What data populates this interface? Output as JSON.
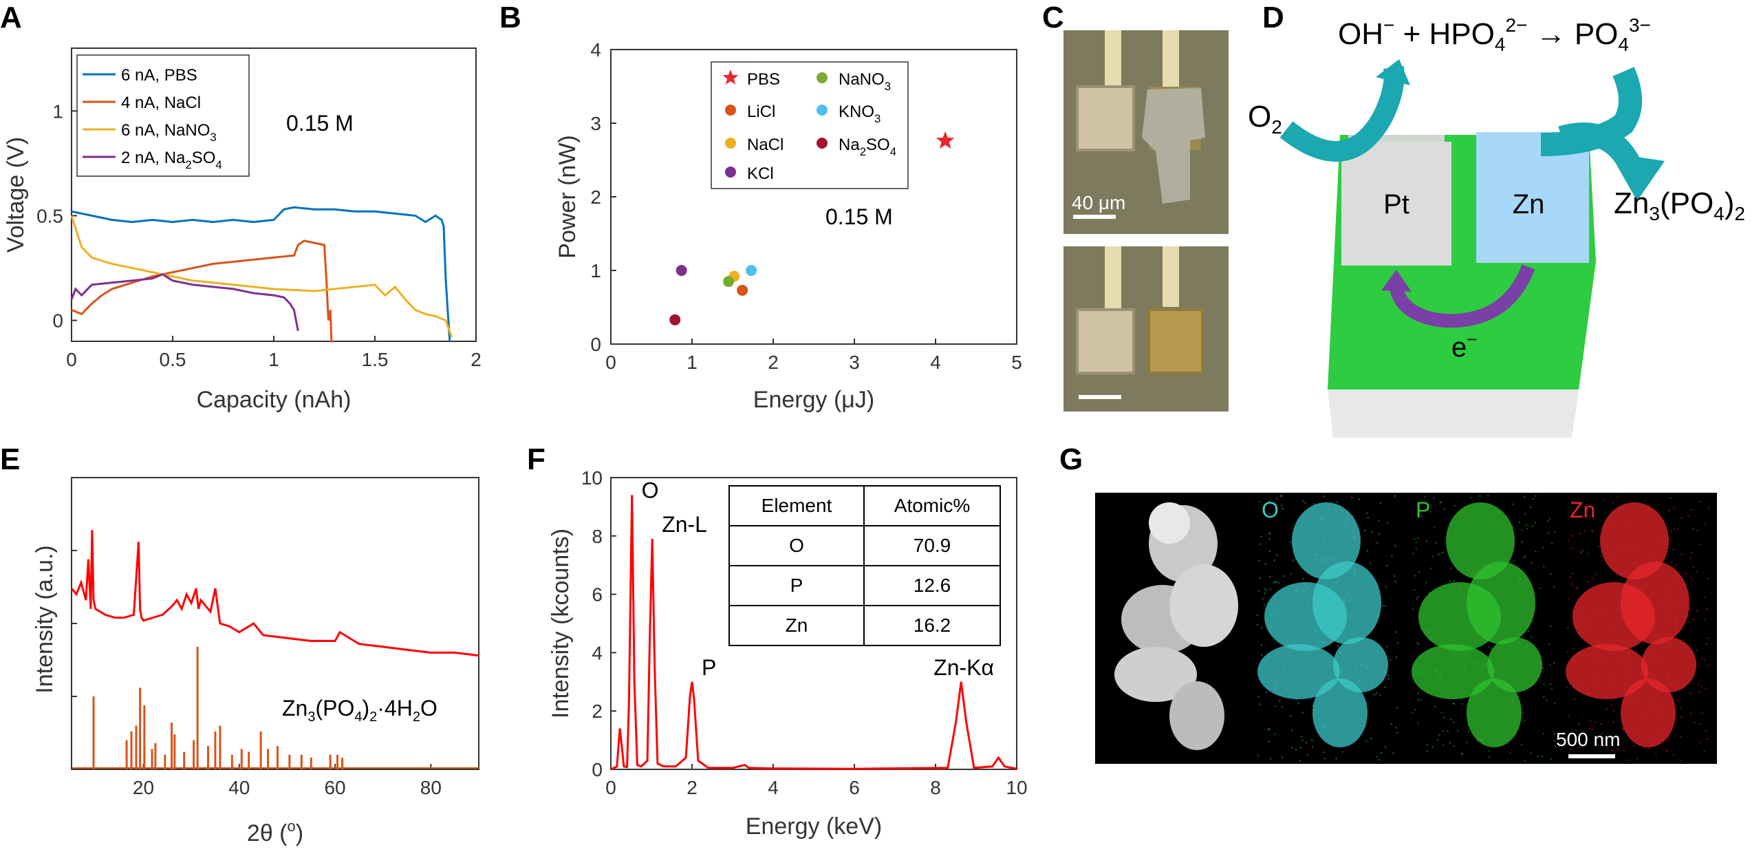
{
  "panels": [
    {
      "id": "A",
      "letter": "A"
    },
    {
      "id": "B",
      "letter": "B"
    },
    {
      "id": "C",
      "letter": "C"
    },
    {
      "id": "D",
      "letter": "D"
    },
    {
      "id": "E",
      "letter": "E"
    },
    {
      "id": "F",
      "letter": "F"
    },
    {
      "id": "G",
      "letter": "G"
    }
  ],
  "chart_data": [
    {
      "panel": "A",
      "type": "line",
      "xlabel": "Capacity (nAh)",
      "ylabel": "Voltage (V)",
      "xlim": [
        0,
        2
      ],
      "ylim": [
        -0.1,
        1.3
      ],
      "xticks": [
        "0",
        "0.5",
        "1",
        "1.5",
        "2"
      ],
      "yticks": [
        "0",
        "0.5",
        "1"
      ],
      "annotation": "0.15 M",
      "legend_position": "top-left",
      "series": [
        {
          "label_main": "6 nA, PBS",
          "label_sub": "",
          "label_tail": "",
          "color": "#0072BD",
          "x": [
            0,
            0.1,
            0.2,
            0.3,
            0.4,
            0.5,
            0.6,
            0.7,
            0.8,
            0.9,
            1.0,
            1.05,
            1.1,
            1.2,
            1.3,
            1.4,
            1.5,
            1.6,
            1.7,
            1.75,
            1.8,
            1.83,
            1.84,
            1.85,
            1.86,
            1.87
          ],
          "y": [
            0.52,
            0.5,
            0.48,
            0.47,
            0.48,
            0.47,
            0.48,
            0.47,
            0.48,
            0.47,
            0.48,
            0.53,
            0.54,
            0.53,
            0.53,
            0.52,
            0.52,
            0.51,
            0.5,
            0.47,
            0.5,
            0.48,
            0.45,
            0.2,
            0.05,
            -0.1
          ]
        },
        {
          "label_main": "4 nA, NaCl",
          "label_sub": "",
          "label_tail": "",
          "color": "#D95319",
          "x": [
            0,
            0.05,
            0.1,
            0.15,
            0.2,
            0.3,
            0.4,
            0.5,
            0.6,
            0.7,
            0.8,
            0.9,
            1.0,
            1.1,
            1.12,
            1.15,
            1.2,
            1.25,
            1.26,
            1.27,
            1.28,
            1.285,
            1.29
          ],
          "y": [
            0.05,
            0.03,
            0.08,
            0.12,
            0.15,
            0.18,
            0.21,
            0.23,
            0.25,
            0.27,
            0.28,
            0.29,
            0.3,
            0.31,
            0.36,
            0.38,
            0.37,
            0.36,
            0.2,
            0.0,
            0.05,
            -0.1,
            -0.1
          ]
        },
        {
          "label_main": "6 nA, NaNO",
          "label_sub": "3",
          "label_tail": "",
          "color": "#EDB120",
          "x": [
            0,
            0.05,
            0.1,
            0.2,
            0.3,
            0.4,
            0.5,
            0.6,
            0.8,
            1.0,
            1.2,
            1.3,
            1.4,
            1.5,
            1.55,
            1.6,
            1.65,
            1.7,
            1.75,
            1.8,
            1.85,
            1.88
          ],
          "y": [
            0.5,
            0.35,
            0.3,
            0.27,
            0.25,
            0.23,
            0.21,
            0.19,
            0.17,
            0.15,
            0.14,
            0.15,
            0.16,
            0.17,
            0.12,
            0.16,
            0.1,
            0.05,
            0.03,
            0.02,
            0.0,
            -0.08
          ]
        },
        {
          "label_main": "2 nA, Na",
          "label_sub": "2",
          "label_tail": "SO",
          "label_sub2": "4",
          "color": "#7E2F8E",
          "x": [
            0,
            0.02,
            0.05,
            0.1,
            0.2,
            0.3,
            0.4,
            0.45,
            0.5,
            0.6,
            0.7,
            0.8,
            0.9,
            1.0,
            1.05,
            1.08,
            1.1,
            1.12
          ],
          "y": [
            0.1,
            0.15,
            0.12,
            0.17,
            0.18,
            0.19,
            0.2,
            0.22,
            0.19,
            0.17,
            0.16,
            0.15,
            0.13,
            0.12,
            0.11,
            0.08,
            0.05,
            -0.05
          ]
        }
      ]
    },
    {
      "panel": "B",
      "type": "scatter",
      "xlabel": "Energy (μJ)",
      "ylabel": "Power (nW)",
      "xlim": [
        0,
        5
      ],
      "ylim": [
        0,
        4
      ],
      "xticks": [
        "0",
        "1",
        "2",
        "3",
        "4",
        "5"
      ],
      "yticks": [
        "0",
        "1",
        "2",
        "3",
        "4"
      ],
      "annotation": "0.15 M",
      "legend_position": "top-right",
      "points": [
        {
          "label_main": "PBS",
          "label_sub": "",
          "label_tail": "",
          "label_sub2": "",
          "x": 4.12,
          "y": 2.76,
          "color": "#E8262B",
          "marker": "star"
        },
        {
          "label_main": "LiCl",
          "label_sub": "",
          "label_tail": "",
          "label_sub2": "",
          "x": 1.62,
          "y": 0.73,
          "color": "#D95319",
          "marker": "circle"
        },
        {
          "label_main": "NaCl",
          "label_sub": "",
          "label_tail": "",
          "label_sub2": "",
          "x": 1.52,
          "y": 0.92,
          "color": "#EDB120",
          "marker": "circle"
        },
        {
          "label_main": "KCl",
          "label_sub": "",
          "label_tail": "",
          "label_sub2": "",
          "x": 0.87,
          "y": 1.0,
          "color": "#7E2F8E",
          "marker": "circle"
        },
        {
          "label_main": "NaNO",
          "label_sub": "3",
          "label_tail": "",
          "label_sub2": "",
          "x": 1.45,
          "y": 0.85,
          "color": "#77AC30",
          "marker": "circle"
        },
        {
          "label_main": "KNO",
          "label_sub": "3",
          "label_tail": "",
          "label_sub2": "",
          "x": 1.73,
          "y": 1.0,
          "color": "#4DBEEE",
          "marker": "circle"
        },
        {
          "label_main": "Na",
          "label_sub": "2",
          "label_tail": "SO",
          "label_sub2": "4",
          "x": 0.79,
          "y": 0.33,
          "color": "#A2142F",
          "marker": "circle"
        }
      ]
    },
    {
      "panel": "E",
      "type": "line",
      "xlabel": "2θ (",
      "xlabel_sup": "o",
      "xlabel_tail": ")",
      "ylabel": "Intensity (a.u.)",
      "xlim": [
        5,
        90
      ],
      "xticks": [
        "20",
        "40",
        "60",
        "80"
      ],
      "annotation_main": "Zn",
      "annotation_parts": [
        "3",
        "(PO",
        "4",
        ")",
        "2",
        "·4H",
        "2",
        "O"
      ],
      "series": [
        {
          "name": "measured",
          "color": "#FF0000",
          "x": [
            5,
            6,
            7,
            8,
            8.5,
            9,
            9.3,
            9.6,
            10,
            11,
            12,
            14,
            16,
            18,
            19,
            19.3,
            19.6,
            20,
            22,
            24,
            26,
            27,
            28,
            29,
            30,
            31,
            31.5,
            32,
            33,
            34,
            35,
            36,
            38,
            40,
            43,
            45,
            50,
            55,
            60,
            61,
            65,
            70,
            75,
            80,
            85,
            90
          ],
          "y": [
            0.62,
            0.6,
            0.64,
            0.58,
            0.72,
            0.55,
            0.82,
            0.58,
            0.55,
            0.54,
            0.53,
            0.52,
            0.52,
            0.53,
            0.78,
            0.55,
            0.52,
            0.51,
            0.52,
            0.53,
            0.56,
            0.58,
            0.55,
            0.6,
            0.57,
            0.62,
            0.55,
            0.58,
            0.56,
            0.54,
            0.62,
            0.5,
            0.49,
            0.47,
            0.5,
            0.46,
            0.45,
            0.44,
            0.44,
            0.47,
            0.43,
            0.42,
            0.41,
            0.4,
            0.4,
            0.39
          ]
        },
        {
          "name": "reference",
          "color": "#D95319",
          "peaks_x": [
            9.6,
            16.5,
            17.5,
            18.5,
            19.3,
            20.2,
            21.8,
            22.5,
            24.5,
            25.9,
            26.5,
            28.5,
            30.5,
            31.3,
            33.5,
            35.0,
            36.0,
            38.5,
            40.5,
            42.0,
            44.5,
            46.0,
            48.0,
            50.5,
            53.0,
            55.0,
            59.0,
            60.5,
            61.5
          ],
          "peaks_h": [
            0.25,
            0.1,
            0.13,
            0.15,
            0.28,
            0.22,
            0.07,
            0.09,
            0.05,
            0.16,
            0.12,
            0.06,
            0.1,
            0.42,
            0.08,
            0.13,
            0.15,
            0.05,
            0.07,
            0.06,
            0.13,
            0.07,
            0.08,
            0.05,
            0.05,
            0.04,
            0.05,
            0.05,
            0.04
          ]
        }
      ]
    },
    {
      "panel": "F",
      "type": "line",
      "xlabel": "Energy (keV)",
      "ylabel": "Intensity (kcounts)",
      "xlim": [
        0,
        10
      ],
      "ylim": [
        0,
        10
      ],
      "xticks": [
        "0",
        "2",
        "4",
        "6",
        "8",
        "10"
      ],
      "yticks": [
        "0",
        "2",
        "4",
        "6",
        "8",
        "10"
      ],
      "peak_labels": [
        {
          "text": "O",
          "x": 0.52,
          "y": 9.4
        },
        {
          "text": "Zn-L",
          "x": 1.02,
          "y": 7.9
        },
        {
          "text": "P",
          "x": 2.0,
          "y": 3.0
        },
        {
          "text": "Zn-Kα",
          "x": 8.63,
          "y": 3.0
        }
      ],
      "series": [
        {
          "name": "EDS",
          "color": "#FF0000",
          "x": [
            0,
            0.15,
            0.22,
            0.27,
            0.32,
            0.4,
            0.45,
            0.52,
            0.58,
            0.65,
            0.75,
            0.9,
            0.96,
            1.02,
            1.08,
            1.15,
            1.3,
            1.6,
            1.85,
            1.95,
            2.0,
            2.05,
            2.15,
            2.4,
            3.0,
            3.3,
            3.4,
            4,
            6,
            8.3,
            8.5,
            8.63,
            8.76,
            8.95,
            9.4,
            9.55,
            9.7,
            10
          ],
          "y": [
            0,
            0.1,
            1.4,
            0.8,
            0.1,
            0.08,
            2.5,
            9.4,
            3.0,
            0.15,
            0.1,
            0.3,
            4.5,
            7.9,
            3.5,
            0.2,
            0.1,
            0.1,
            0.4,
            2.5,
            3.0,
            2.4,
            0.3,
            0.05,
            0.05,
            0.15,
            0.05,
            0.03,
            0.02,
            0.05,
            1.6,
            3.0,
            1.6,
            0.05,
            0.1,
            0.4,
            0.1,
            0.02
          ]
        }
      ],
      "table": {
        "headers": [
          "Element",
          "Atomic%"
        ],
        "rows": [
          [
            "O",
            "70.9"
          ],
          [
            "P",
            "12.6"
          ],
          [
            "Zn",
            "16.2"
          ]
        ]
      }
    }
  ],
  "panelC": {
    "scale_label": "40 μm"
  },
  "panelD": {
    "equation_parts": [
      "OH",
      "−",
      " + HPO",
      "4",
      "2−",
      " → PO",
      "4",
      "3−"
    ],
    "o2_main": "O",
    "o2_sub": "2",
    "pt": "Pt",
    "zn": "Zn",
    "product_parts": [
      "Zn",
      "3",
      "(PO",
      "4",
      ")",
      "2"
    ],
    "electron_main": "e",
    "electron_sup": "−"
  },
  "panelG": {
    "channels": [
      {
        "label": "O",
        "color": "#3CC8C8"
      },
      {
        "label": "P",
        "color": "#2EC22E"
      },
      {
        "label": "Zn",
        "color": "#E8262B"
      }
    ],
    "scale_label": "500 nm"
  }
}
